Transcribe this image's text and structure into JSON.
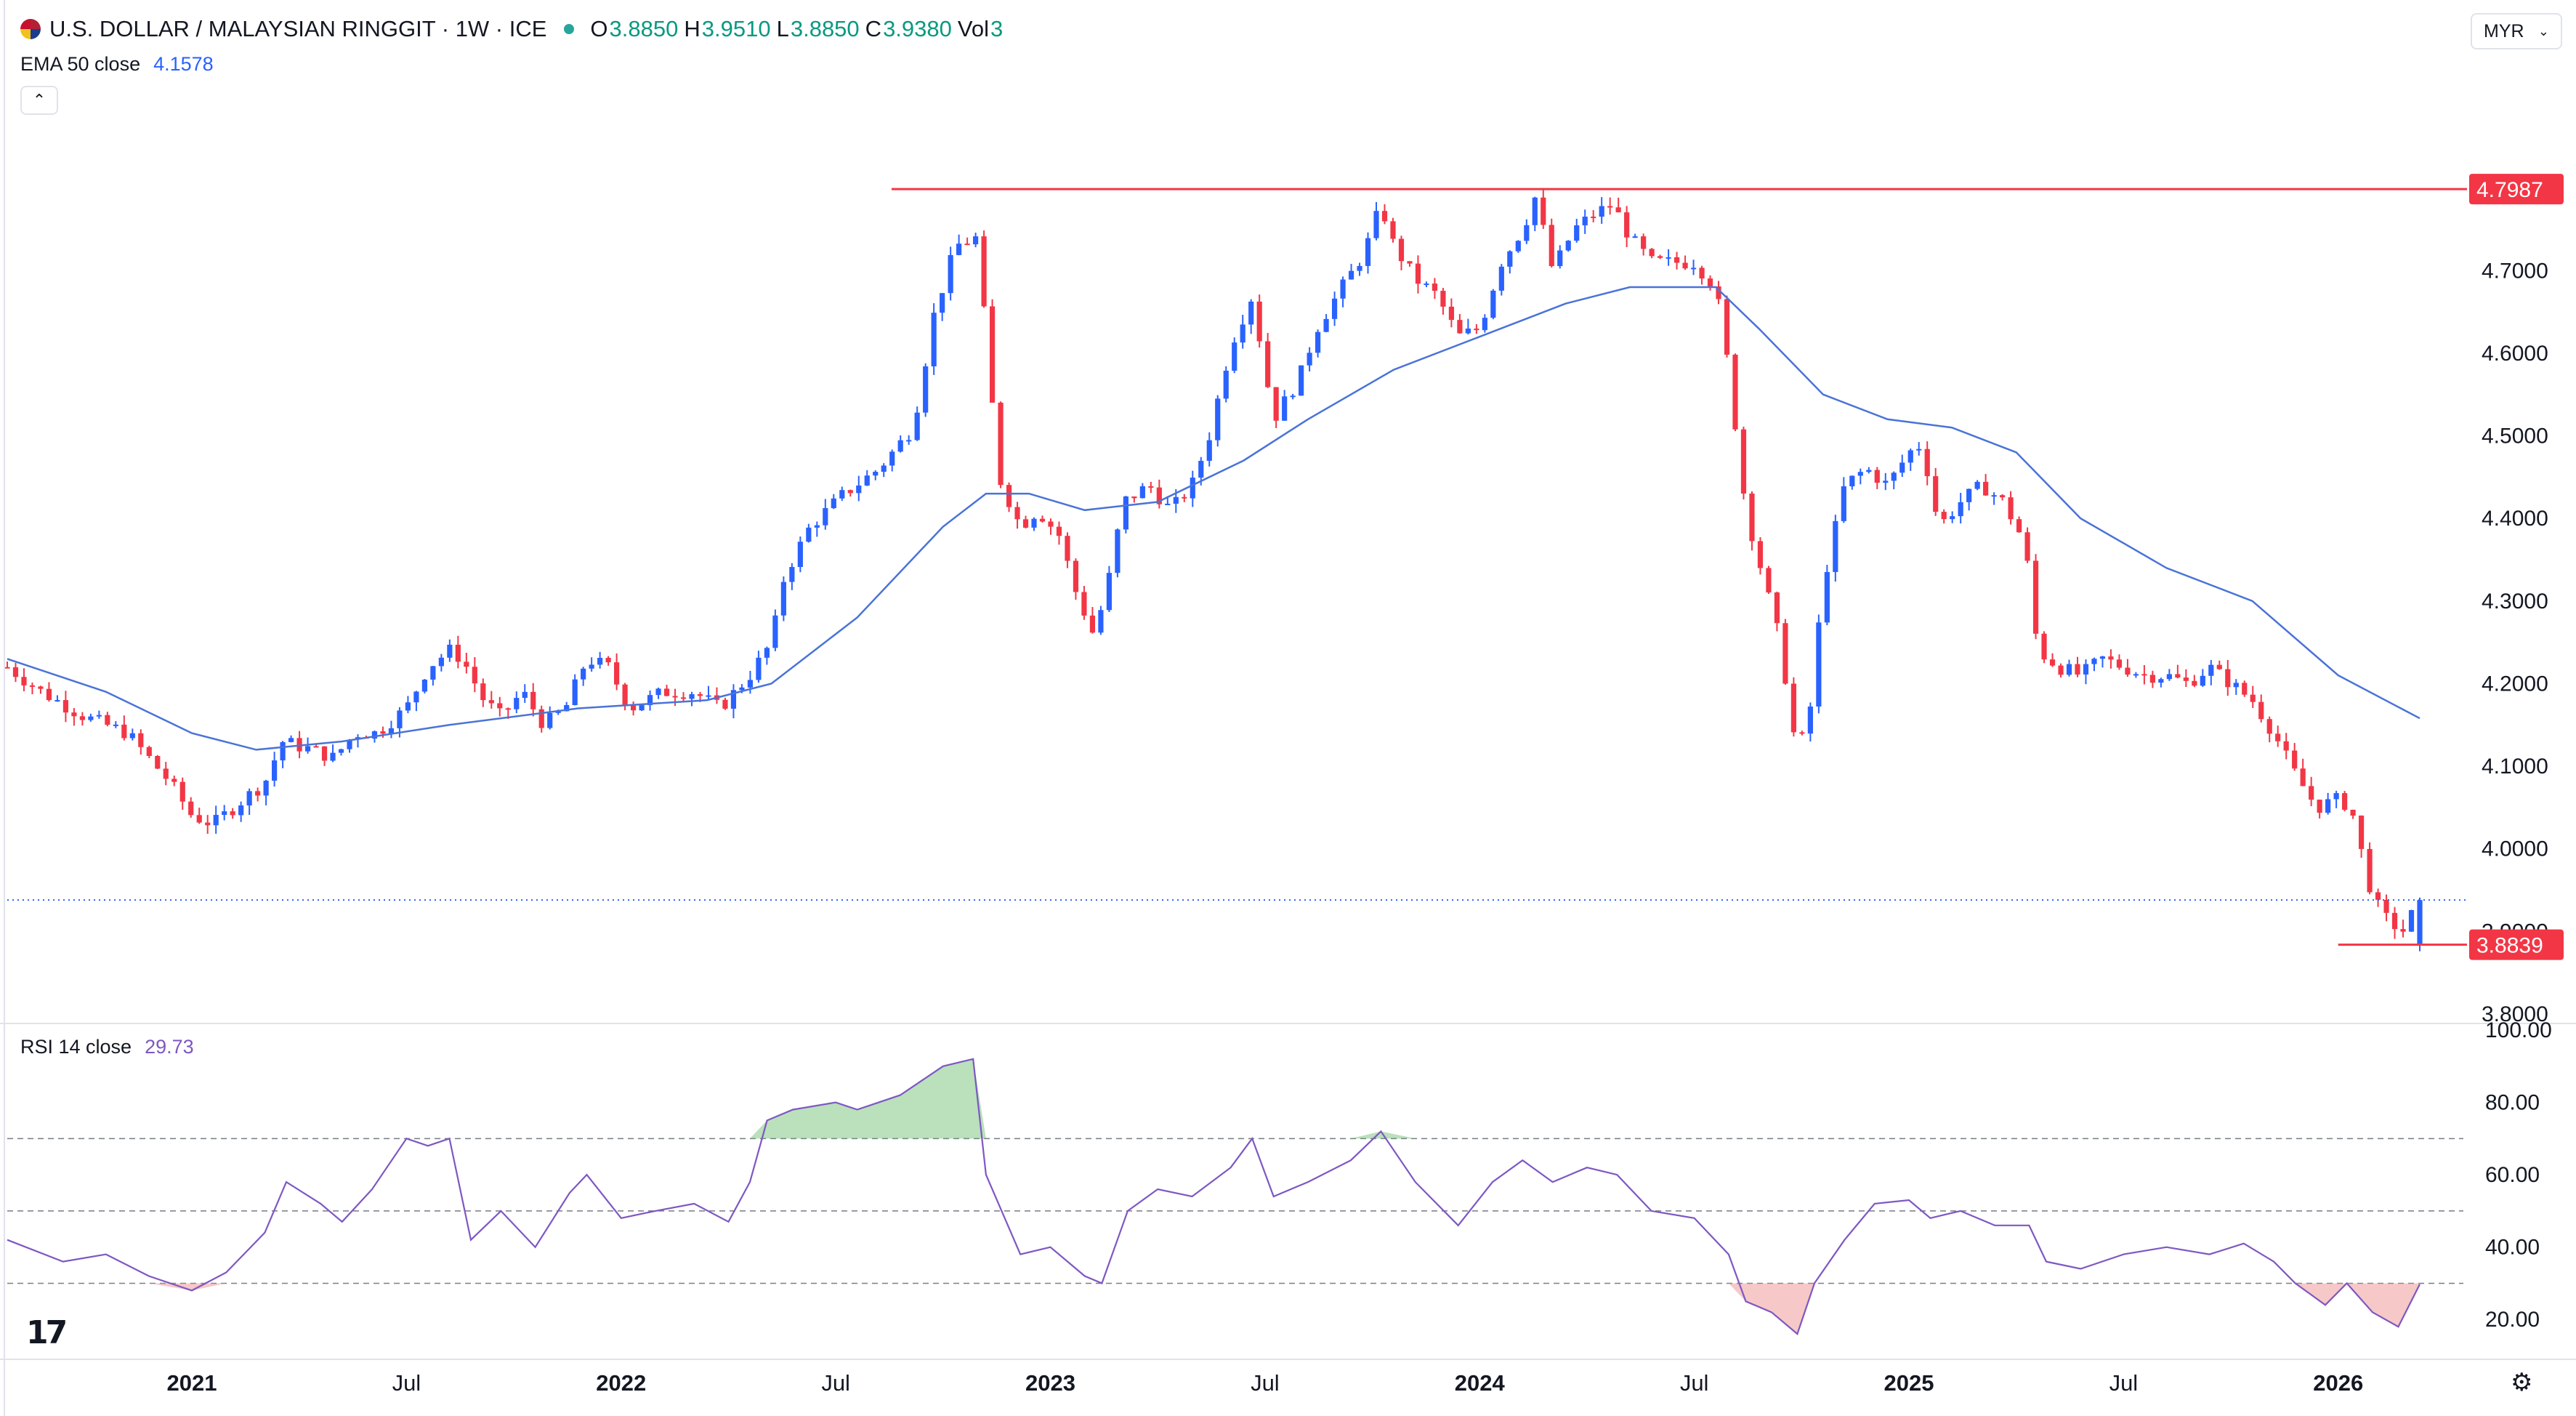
{
  "header": {
    "symbol_title": "U.S. DOLLAR / MALAYSIAN RINGGIT · 1W · ICE",
    "open_label": "O",
    "open": "3.8850",
    "high_label": "H",
    "high": "3.9510",
    "low_label": "L",
    "low": "3.8850",
    "close_label": "C",
    "close": "3.9380",
    "vol_label": "Vol",
    "vol": "3",
    "currency_button": "MYR",
    "collapse_icon": "chevron-up-icon",
    "settings_icon": "gear-icon",
    "logo_icon": "tradingview-logo"
  },
  "ema": {
    "label": "EMA 50 close",
    "value": "4.1578"
  },
  "rsi": {
    "label": "RSI 14 close",
    "value": "29.73"
  },
  "colors": {
    "up": "#2962ff",
    "down": "#f23645",
    "ema": "#4a73d8",
    "rsi": "#7e57c2",
    "resistance": "#f23645",
    "support": "#f23645",
    "overbought_fill": "#66bb6a",
    "oversold_fill": "#ef9a9a"
  },
  "chart_data": [
    {
      "type": "candlestick",
      "title": "U.S. DOLLAR / MALAYSIAN RINGGIT · 1W · ICE",
      "x_labels": [
        "2021",
        "Jul",
        "2022",
        "Jul",
        "2023",
        "Jul",
        "2024",
        "Jul",
        "2025",
        "Jul",
        "2026"
      ],
      "x_label_positions_year": [
        2021.0,
        2021.5,
        2022.0,
        2022.5,
        2023.0,
        2023.5,
        2024.0,
        2024.5,
        2025.0,
        2025.5,
        2026.0
      ],
      "ylim": [
        3.8,
        4.9
      ],
      "y_ticks": [
        "4.7000",
        "4.6000",
        "4.5000",
        "4.4000",
        "4.3000",
        "4.2000",
        "4.1000",
        "4.0000",
        "3.9000",
        "3.8000"
      ],
      "resistance": {
        "value": 4.7987,
        "label": "4.7987"
      },
      "support": {
        "value": 3.8839,
        "label": "3.8839"
      },
      "last_close": 3.938,
      "close_path": [
        [
          2020.57,
          4.22
        ],
        [
          2020.65,
          4.19
        ],
        [
          2020.75,
          4.16
        ],
        [
          2020.85,
          4.14
        ],
        [
          2020.95,
          4.08
        ],
        [
          2021.0,
          4.04
        ],
        [
          2021.05,
          4.03
        ],
        [
          2021.12,
          4.06
        ],
        [
          2021.17,
          4.08
        ],
        [
          2021.21,
          4.13
        ],
        [
          2021.28,
          4.12
        ],
        [
          2021.33,
          4.11
        ],
        [
          2021.38,
          4.14
        ],
        [
          2021.43,
          4.14
        ],
        [
          2021.5,
          4.17
        ],
        [
          2021.55,
          4.22
        ],
        [
          2021.6,
          4.24
        ],
        [
          2021.63,
          4.23
        ],
        [
          2021.68,
          4.18
        ],
        [
          2021.72,
          4.16
        ],
        [
          2021.77,
          4.19
        ],
        [
          2021.82,
          4.15
        ],
        [
          2021.87,
          4.17
        ],
        [
          2021.92,
          4.23
        ],
        [
          2021.97,
          4.22
        ],
        [
          2022.02,
          4.17
        ],
        [
          2022.1,
          4.19
        ],
        [
          2022.17,
          4.19
        ],
        [
          2022.23,
          4.17
        ],
        [
          2022.3,
          4.21
        ],
        [
          2022.35,
          4.25
        ],
        [
          2022.38,
          4.33
        ],
        [
          2022.44,
          4.39
        ],
        [
          2022.52,
          4.43
        ],
        [
          2022.6,
          4.46
        ],
        [
          2022.68,
          4.51
        ],
        [
          2022.73,
          4.65
        ],
        [
          2022.78,
          4.73
        ],
        [
          2022.83,
          4.74
        ],
        [
          2022.85,
          4.62
        ],
        [
          2022.88,
          4.45
        ],
        [
          2022.93,
          4.39
        ],
        [
          2022.97,
          4.41
        ],
        [
          2023.02,
          4.38
        ],
        [
          2023.06,
          4.31
        ],
        [
          2023.1,
          4.26
        ],
        [
          2023.13,
          4.31
        ],
        [
          2023.17,
          4.42
        ],
        [
          2023.23,
          4.44
        ],
        [
          2023.28,
          4.41
        ],
        [
          2023.33,
          4.44
        ],
        [
          2023.37,
          4.5
        ],
        [
          2023.42,
          4.61
        ],
        [
          2023.47,
          4.67
        ],
        [
          2023.52,
          4.52
        ],
        [
          2023.58,
          4.57
        ],
        [
          2023.62,
          4.63
        ],
        [
          2023.68,
          4.68
        ],
        [
          2023.73,
          4.72
        ],
        [
          2023.77,
          4.78
        ],
        [
          2023.8,
          4.73
        ],
        [
          2023.85,
          4.69
        ],
        [
          2023.9,
          4.67
        ],
        [
          2023.95,
          4.62
        ],
        [
          2024.0,
          4.63
        ],
        [
          2024.05,
          4.71
        ],
        [
          2024.1,
          4.75
        ],
        [
          2024.13,
          4.79
        ],
        [
          2024.17,
          4.7
        ],
        [
          2024.22,
          4.75
        ],
        [
          2024.27,
          4.77
        ],
        [
          2024.31,
          4.78
        ],
        [
          2024.35,
          4.74
        ],
        [
          2024.4,
          4.71
        ],
        [
          2024.45,
          4.71
        ],
        [
          2024.5,
          4.71
        ],
        [
          2024.55,
          4.68
        ],
        [
          2024.58,
          4.58
        ],
        [
          2024.62,
          4.41
        ],
        [
          2024.66,
          4.33
        ],
        [
          2024.7,
          4.25
        ],
        [
          2024.74,
          4.11
        ],
        [
          2024.77,
          4.17
        ],
        [
          2024.8,
          4.32
        ],
        [
          2024.85,
          4.44
        ],
        [
          2024.9,
          4.46
        ],
        [
          2024.95,
          4.44
        ],
        [
          2025.0,
          4.48
        ],
        [
          2025.03,
          4.49
        ],
        [
          2025.07,
          4.39
        ],
        [
          2025.12,
          4.42
        ],
        [
          2025.17,
          4.44
        ],
        [
          2025.22,
          4.42
        ],
        [
          2025.27,
          4.37
        ],
        [
          2025.3,
          4.24
        ],
        [
          2025.35,
          4.22
        ],
        [
          2025.4,
          4.21
        ],
        [
          2025.45,
          4.23
        ],
        [
          2025.5,
          4.22
        ],
        [
          2025.55,
          4.21
        ],
        [
          2025.6,
          4.21
        ],
        [
          2025.65,
          4.2
        ],
        [
          2025.7,
          4.22
        ],
        [
          2025.75,
          4.2
        ],
        [
          2025.8,
          4.18
        ],
        [
          2025.85,
          4.14
        ],
        [
          2025.9,
          4.09
        ],
        [
          2025.95,
          4.05
        ],
        [
          2026.0,
          4.06
        ],
        [
          2026.03,
          4.05
        ],
        [
          2026.07,
          3.96
        ],
        [
          2026.1,
          3.92
        ],
        [
          2026.15,
          3.9
        ],
        [
          2026.19,
          3.938
        ]
      ],
      "ema50": [
        [
          2020.57,
          4.23
        ],
        [
          2020.8,
          4.19
        ],
        [
          2021.0,
          4.14
        ],
        [
          2021.15,
          4.12
        ],
        [
          2021.35,
          4.13
        ],
        [
          2021.6,
          4.15
        ],
        [
          2021.9,
          4.17
        ],
        [
          2022.2,
          4.18
        ],
        [
          2022.35,
          4.2
        ],
        [
          2022.55,
          4.28
        ],
        [
          2022.75,
          4.39
        ],
        [
          2022.85,
          4.43
        ],
        [
          2022.95,
          4.43
        ],
        [
          2023.08,
          4.41
        ],
        [
          2023.25,
          4.42
        ],
        [
          2023.45,
          4.47
        ],
        [
          2023.6,
          4.52
        ],
        [
          2023.8,
          4.58
        ],
        [
          2024.0,
          4.62
        ],
        [
          2024.2,
          4.66
        ],
        [
          2024.35,
          4.68
        ],
        [
          2024.55,
          4.68
        ],
        [
          2024.65,
          4.63
        ],
        [
          2024.8,
          4.55
        ],
        [
          2024.95,
          4.52
        ],
        [
          2025.1,
          4.51
        ],
        [
          2025.25,
          4.48
        ],
        [
          2025.4,
          4.4
        ],
        [
          2025.6,
          4.34
        ],
        [
          2025.8,
          4.3
        ],
        [
          2026.0,
          4.21
        ],
        [
          2026.19,
          4.158
        ]
      ]
    },
    {
      "type": "line",
      "title": "RSI 14 close",
      "ylim": [
        10,
        100
      ],
      "y_ticks": [
        "100.00",
        "80.00",
        "60.00",
        "40.00",
        "20.00"
      ],
      "levels": [
        70,
        50,
        30
      ],
      "last_value": 29.73,
      "rsi_path": [
        [
          2020.57,
          42
        ],
        [
          2020.7,
          36
        ],
        [
          2020.8,
          38
        ],
        [
          2020.9,
          32
        ],
        [
          2021.0,
          28
        ],
        [
          2021.08,
          33
        ],
        [
          2021.17,
          44
        ],
        [
          2021.22,
          58
        ],
        [
          2021.3,
          52
        ],
        [
          2021.35,
          47
        ],
        [
          2021.42,
          56
        ],
        [
          2021.5,
          70
        ],
        [
          2021.55,
          68
        ],
        [
          2021.6,
          70
        ],
        [
          2021.65,
          42
        ],
        [
          2021.72,
          50
        ],
        [
          2021.8,
          40
        ],
        [
          2021.88,
          55
        ],
        [
          2021.92,
          60
        ],
        [
          2022.0,
          48
        ],
        [
          2022.08,
          50
        ],
        [
          2022.17,
          52
        ],
        [
          2022.25,
          47
        ],
        [
          2022.3,
          58
        ],
        [
          2022.34,
          75
        ],
        [
          2022.4,
          78
        ],
        [
          2022.5,
          80
        ],
        [
          2022.55,
          78
        ],
        [
          2022.65,
          82
        ],
        [
          2022.75,
          90
        ],
        [
          2022.82,
          92
        ],
        [
          2022.85,
          60
        ],
        [
          2022.93,
          38
        ],
        [
          2023.0,
          40
        ],
        [
          2023.08,
          32
        ],
        [
          2023.12,
          30
        ],
        [
          2023.18,
          50
        ],
        [
          2023.25,
          56
        ],
        [
          2023.33,
          54
        ],
        [
          2023.42,
          62
        ],
        [
          2023.47,
          70
        ],
        [
          2023.52,
          54
        ],
        [
          2023.6,
          58
        ],
        [
          2023.7,
          64
        ],
        [
          2023.77,
          72
        ],
        [
          2023.85,
          58
        ],
        [
          2023.95,
          46
        ],
        [
          2024.03,
          58
        ],
        [
          2024.1,
          64
        ],
        [
          2024.17,
          58
        ],
        [
          2024.25,
          62
        ],
        [
          2024.32,
          60
        ],
        [
          2024.4,
          50
        ],
        [
          2024.5,
          48
        ],
        [
          2024.58,
          38
        ],
        [
          2024.62,
          25
        ],
        [
          2024.68,
          22
        ],
        [
          2024.74,
          16
        ],
        [
          2024.78,
          30
        ],
        [
          2024.85,
          42
        ],
        [
          2024.92,
          52
        ],
        [
          2025.0,
          53
        ],
        [
          2025.05,
          48
        ],
        [
          2025.12,
          50
        ],
        [
          2025.2,
          46
        ],
        [
          2025.28,
          46
        ],
        [
          2025.32,
          36
        ],
        [
          2025.4,
          34
        ],
        [
          2025.5,
          38
        ],
        [
          2025.6,
          40
        ],
        [
          2025.7,
          38
        ],
        [
          2025.78,
          41
        ],
        [
          2025.85,
          36
        ],
        [
          2025.9,
          30
        ],
        [
          2025.97,
          24
        ],
        [
          2026.02,
          30
        ],
        [
          2026.08,
          22
        ],
        [
          2026.14,
          18
        ],
        [
          2026.19,
          29.73
        ]
      ]
    }
  ]
}
